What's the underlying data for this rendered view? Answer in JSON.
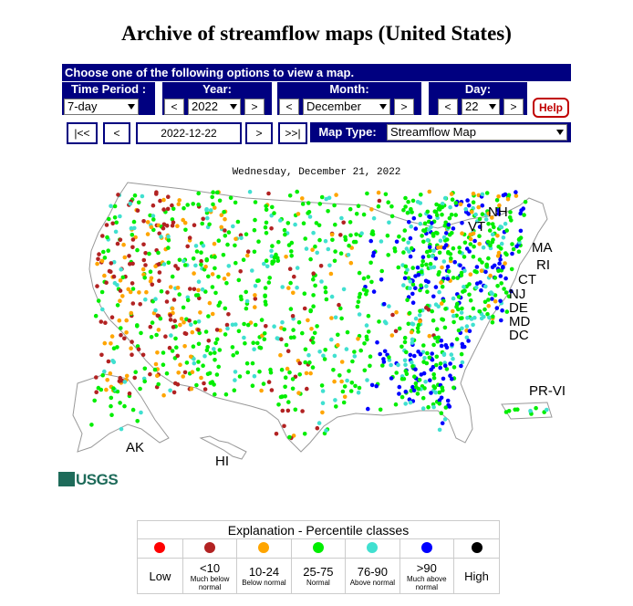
{
  "page_title": "Archive of streamflow maps (United States)",
  "controls": {
    "header": "Choose one of the following options to view a map.",
    "time_period": {
      "label": "Time Period :",
      "value": "7-day"
    },
    "year": {
      "label": "Year:",
      "value": "2022",
      "prev": "<",
      "next": ">"
    },
    "month": {
      "label": "Month:",
      "value": "December",
      "prev": "<",
      "next": ">"
    },
    "day": {
      "label": "Day:",
      "value": "22",
      "prev": "<",
      "next": ">"
    },
    "help": "Help",
    "nav": {
      "first": "|<<",
      "prev": "<",
      "date": "2022-12-22",
      "next": ">",
      "last": ">>|"
    },
    "map_type": {
      "label": "Map Type:",
      "value": "Streamflow Map"
    }
  },
  "map": {
    "date_caption": "Wednesday, December 21, 2022",
    "region_labels": [
      "NH",
      "VT",
      "MA",
      "RI",
      "CT",
      "NJ",
      "DE",
      "MD",
      "DC",
      "PR-VI",
      "AK",
      "HI"
    ],
    "logo": "USGS"
  },
  "legend": {
    "title": "Explanation - Percentile classes",
    "classes": [
      {
        "color": "#ff0000",
        "label": "Low",
        "sub": ""
      },
      {
        "color": "#b22222",
        "label": "<10",
        "sub": "Much below normal"
      },
      {
        "color": "#ffa500",
        "label": "10-24",
        "sub": "Below normal"
      },
      {
        "color": "#00ee00",
        "label": "25-75",
        "sub": "Normal"
      },
      {
        "color": "#40e0d0",
        "label": "76-90",
        "sub": "Above normal"
      },
      {
        "color": "#0000ff",
        "label": ">90",
        "sub": "Much above normal"
      },
      {
        "color": "#000000",
        "label": "High",
        "sub": ""
      }
    ]
  }
}
